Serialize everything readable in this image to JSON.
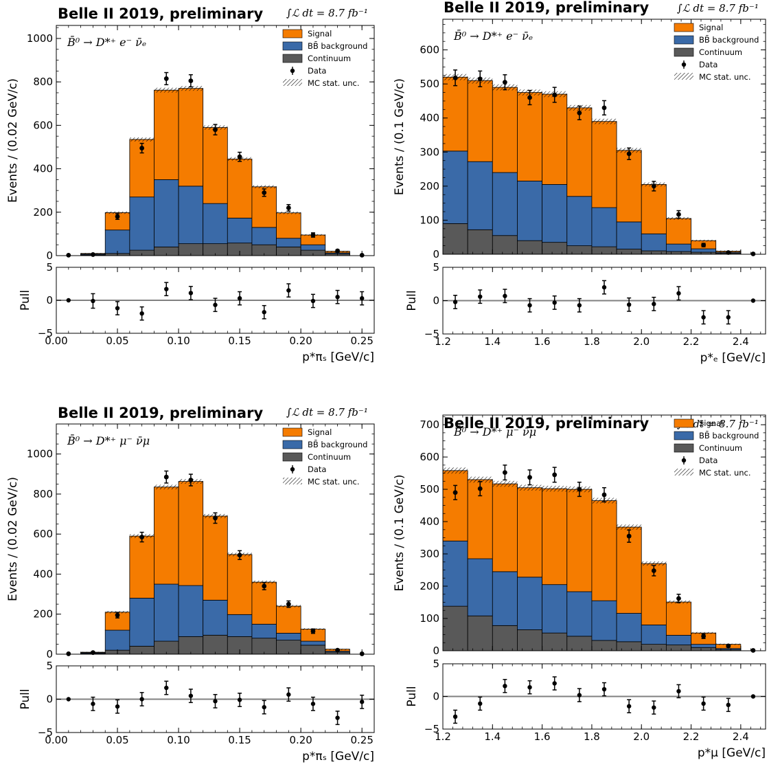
{
  "colors": {
    "signal": "#f57c00",
    "bbbar": "#3a6aa8",
    "continuum": "#595959",
    "data": "#000000",
    "zero_line": "#808080"
  },
  "chart_data": [
    {
      "type": "bar",
      "stacked": true,
      "title": "Belle II 2019, preliminary",
      "luminosity": "∫ℒ dt = 8.7 fb⁻¹",
      "process": "B̄⁰ → D*⁺ e⁻ ν̄ₑ",
      "xlabel": "p*πₛ [GeV/c]",
      "ylabel": "Events / (0.02 GeV/c)",
      "pull_label": "Pull",
      "xlim": [
        0.0,
        0.26
      ],
      "ylim": [
        0,
        1060
      ],
      "pull_lim": [
        -5,
        5
      ],
      "bin_width": 0.02,
      "xticks": [
        "0.00",
        "0.05",
        "0.10",
        "0.15",
        "0.20",
        "0.25"
      ],
      "yticks": [
        "0",
        "200",
        "400",
        "600",
        "800",
        "1000"
      ],
      "pull_ticks": [
        "−5",
        "0",
        "5"
      ],
      "legend": [
        "Signal",
        "BB̄ background",
        "Continuum",
        "Data",
        "MC stat. unc."
      ],
      "x": [
        0.01,
        0.03,
        0.05,
        0.07,
        0.09,
        0.11,
        0.13,
        0.15,
        0.17,
        0.19,
        0.21,
        0.23,
        0.25
      ],
      "series": [
        {
          "name": "Continuum",
          "values": [
            0,
            3,
            10,
            25,
            40,
            55,
            55,
            58,
            50,
            40,
            25,
            8,
            0
          ]
        },
        {
          "name": "BB̄ background",
          "values": [
            0,
            4,
            108,
            245,
            310,
            265,
            185,
            115,
            80,
            40,
            25,
            5,
            0
          ]
        },
        {
          "name": "Signal",
          "values": [
            0,
            3,
            80,
            265,
            412,
            450,
            350,
            272,
            187,
            117,
            45,
            7,
            0
          ]
        }
      ],
      "data": [
        2,
        5,
        180,
        495,
        815,
        805,
        580,
        455,
        290,
        220,
        95,
        22,
        2
      ],
      "data_err": [
        1,
        3,
        13,
        22,
        28,
        28,
        24,
        21,
        17,
        15,
        10,
        5,
        1
      ],
      "pull": [
        0.0,
        -0.1,
        -1.2,
        -2.0,
        1.7,
        1.1,
        -0.7,
        0.3,
        -1.8,
        1.5,
        -0.1,
        0.5,
        0.3
      ],
      "pull_err": [
        0,
        1.1,
        1.0,
        1.0,
        1.0,
        1.0,
        1.0,
        1.0,
        1.0,
        1.0,
        1.0,
        1.0,
        1.0
      ]
    },
    {
      "type": "bar",
      "stacked": true,
      "title": "Belle II 2019, preliminary",
      "luminosity": "∫ℒ dt = 8.7 fb⁻¹",
      "process": "B̄⁰ → D*⁺ e⁻ ν̄ₑ",
      "xlabel": "p*ₑ [GeV/c]",
      "ylabel": "Events / (0.1 GeV/c)",
      "pull_label": "Pull",
      "xlim": [
        1.2,
        2.5
      ],
      "ylim": [
        0,
        690
      ],
      "pull_lim": [
        -5,
        5
      ],
      "bin_width": 0.1,
      "xticks": [
        "1.2",
        "1.4",
        "1.6",
        "1.8",
        "2.0",
        "2.2",
        "2.4"
      ],
      "yticks": [
        "0",
        "100",
        "200",
        "300",
        "400",
        "500",
        "600"
      ],
      "pull_ticks": [
        "−5",
        "0",
        "5"
      ],
      "legend": [
        "Signal",
        "BB̄ background",
        "Continuum",
        "Data",
        "MC stat. unc."
      ],
      "x": [
        1.25,
        1.35,
        1.45,
        1.55,
        1.65,
        1.75,
        1.85,
        1.95,
        2.05,
        2.15,
        2.25,
        2.35,
        2.45
      ],
      "series": [
        {
          "name": "Continuum",
          "values": [
            90,
            72,
            55,
            40,
            35,
            25,
            22,
            15,
            10,
            8,
            6,
            3,
            0
          ]
        },
        {
          "name": "BB̄ background",
          "values": [
            213,
            200,
            185,
            175,
            170,
            145,
            115,
            80,
            50,
            22,
            10,
            3,
            0
          ]
        },
        {
          "name": "Signal",
          "values": [
            217,
            238,
            250,
            260,
            265,
            260,
            253,
            210,
            145,
            75,
            24,
            3,
            0
          ]
        }
      ],
      "data": [
        518,
        515,
        505,
        460,
        468,
        415,
        430,
        295,
        200,
        117,
        27,
        5,
        1
      ],
      "data_err": [
        23,
        23,
        22,
        21,
        22,
        20,
        21,
        17,
        14,
        11,
        5,
        2,
        1
      ],
      "pull": [
        -0.2,
        0.6,
        0.7,
        -0.7,
        -0.3,
        -0.7,
        2.0,
        -0.6,
        -0.5,
        1.1,
        -2.5,
        -2.5,
        0.0
      ],
      "pull_err": [
        1.0,
        1.0,
        1.0,
        1.0,
        1.0,
        1.0,
        1.0,
        1.0,
        1.0,
        1.0,
        1.0,
        1.0,
        0
      ]
    },
    {
      "type": "bar",
      "stacked": true,
      "title": "Belle II 2019, preliminary",
      "luminosity": "∫ℒ dt = 8.7 fb⁻¹",
      "process": "B̄⁰ → D*⁺ μ⁻ ν̄μ",
      "xlabel": "p*πₛ [GeV/c]",
      "ylabel": "Events / (0.02 GeV/c)",
      "pull_label": "Pull",
      "xlim": [
        0.0,
        0.26
      ],
      "ylim": [
        0,
        1150
      ],
      "pull_lim": [
        -5,
        5
      ],
      "bin_width": 0.02,
      "xticks": [
        "0.00",
        "0.05",
        "0.10",
        "0.15",
        "0.20",
        "0.25"
      ],
      "yticks": [
        "0",
        "200",
        "400",
        "600",
        "800",
        "1000"
      ],
      "pull_ticks": [
        "−5",
        "0",
        "5"
      ],
      "legend": [
        "Signal",
        "BB̄ background",
        "Continuum",
        "Data",
        "MC stat. unc."
      ],
      "x": [
        0.01,
        0.03,
        0.05,
        0.07,
        0.09,
        0.11,
        0.13,
        0.15,
        0.17,
        0.19,
        0.21,
        0.23,
        0.25
      ],
      "series": [
        {
          "name": "Continuum",
          "values": [
            0,
            3,
            20,
            40,
            65,
            88,
            95,
            88,
            80,
            70,
            45,
            10,
            0
          ]
        },
        {
          "name": "BB̄ background",
          "values": [
            0,
            4,
            100,
            240,
            285,
            255,
            175,
            110,
            70,
            35,
            20,
            5,
            0
          ]
        },
        {
          "name": "Signal",
          "values": [
            0,
            3,
            90,
            310,
            485,
            520,
            420,
            300,
            210,
            135,
            60,
            10,
            0
          ]
        }
      ],
      "data": [
        2,
        8,
        195,
        585,
        885,
        870,
        680,
        495,
        340,
        250,
        115,
        20,
        2
      ],
      "data_err": [
        1,
        3,
        14,
        24,
        30,
        29,
        26,
        22,
        18,
        16,
        11,
        4,
        1
      ],
      "pull": [
        0.0,
        -0.7,
        -1.1,
        0.0,
        1.7,
        0.5,
        -0.3,
        -0.1,
        -1.2,
        0.7,
        -0.7,
        -2.8,
        -0.4
      ],
      "pull_err": [
        0,
        1.0,
        1.0,
        1.0,
        1.0,
        1.0,
        1.0,
        1.0,
        1.0,
        1.0,
        1.0,
        1.0,
        1.0
      ]
    },
    {
      "type": "bar",
      "stacked": true,
      "title": "Belle II 2019, preliminary",
      "luminosity": "∫ℒ dt = 8.7 fb⁻¹",
      "process": "B̄⁰ → D*⁺ μ⁻ ν̄μ",
      "xlabel": "p*μ [GeV/c]",
      "ylabel": "Events / (0.1 GeV/c)",
      "pull_label": "Pull",
      "xlim": [
        1.2,
        2.5
      ],
      "ylim": [
        0,
        730
      ],
      "pull_lim": [
        -5,
        5
      ],
      "bin_width": 0.1,
      "xticks": [
        "1.2",
        "1.4",
        "1.6",
        "1.8",
        "2.0",
        "2.2",
        "2.4"
      ],
      "yticks": [
        "0",
        "100",
        "200",
        "300",
        "400",
        "500",
        "600",
        "700"
      ],
      "pull_ticks": [
        "−5",
        "0",
        "5"
      ],
      "legend": [
        "Signal",
        "BB̄ background",
        "Continuum",
        "Data",
        "MC stat. unc."
      ],
      "x": [
        1.25,
        1.35,
        1.45,
        1.55,
        1.65,
        1.75,
        1.85,
        1.95,
        2.05,
        2.15,
        2.25,
        2.35,
        2.45
      ],
      "series": [
        {
          "name": "Continuum",
          "values": [
            138,
            108,
            78,
            65,
            55,
            45,
            32,
            28,
            20,
            18,
            10,
            3,
            0
          ]
        },
        {
          "name": "BB̄ background",
          "values": [
            202,
            177,
            167,
            163,
            150,
            138,
            123,
            88,
            60,
            30,
            10,
            4,
            0
          ]
        },
        {
          "name": "Signal",
          "values": [
            218,
            245,
            272,
            277,
            297,
            317,
            310,
            267,
            190,
            103,
            35,
            13,
            0
          ]
        }
      ],
      "data": [
        490,
        502,
        552,
        537,
        545,
        500,
        483,
        355,
        248,
        162,
        45,
        15,
        1
      ],
      "data_err": [
        22,
        22,
        23,
        23,
        23,
        22,
        22,
        19,
        16,
        13,
        7,
        4,
        1
      ],
      "pull": [
        -3.1,
        -1.1,
        1.6,
        1.4,
        2.0,
        0.2,
        1.1,
        -1.5,
        -1.7,
        0.8,
        -1.1,
        -1.3,
        0.0
      ],
      "pull_err": [
        1.0,
        1.0,
        1.0,
        1.0,
        1.0,
        1.0,
        1.0,
        1.0,
        1.0,
        1.0,
        1.0,
        1.0,
        0
      ]
    }
  ]
}
